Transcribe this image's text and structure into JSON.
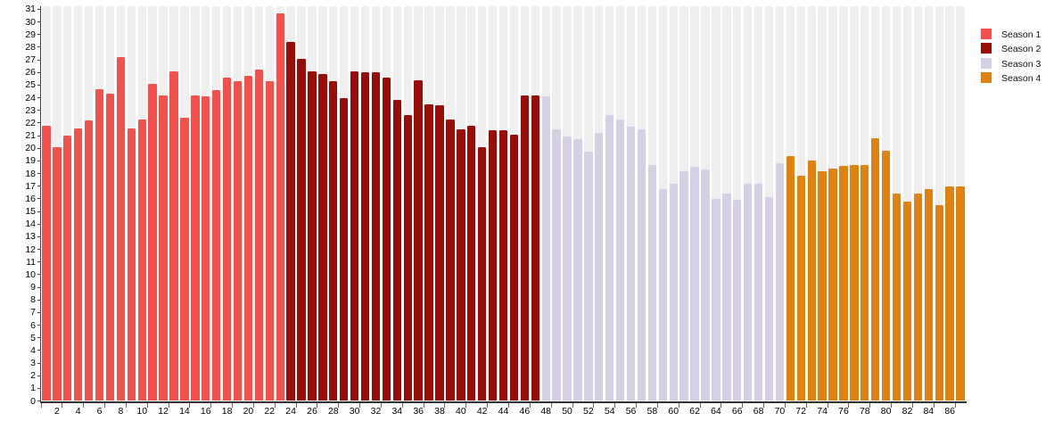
{
  "chart_data": {
    "type": "bar",
    "title": "",
    "xlabel": "",
    "ylabel": "",
    "ylim": [
      0,
      31
    ],
    "y_tick_step": 1,
    "x_tick_label_step": 2,
    "legend_position": "top-right",
    "background_stripe_color": "#efeff0",
    "series": [
      {
        "name": "Season 1",
        "color": "#f3514c",
        "first_episode": 1,
        "values": [
          21.8,
          20.1,
          21.0,
          21.6,
          22.2,
          24.7,
          24.3,
          27.2,
          21.6,
          22.3,
          25.1,
          24.2,
          26.1,
          22.4,
          24.2,
          24.1,
          24.6,
          25.6,
          25.3,
          25.7,
          26.2,
          25.3,
          30.7
        ]
      },
      {
        "name": "Season 2",
        "color": "#990d08",
        "first_episode": 24,
        "values": [
          28.4,
          27.1,
          26.1,
          25.9,
          25.3,
          24.0,
          26.1,
          26.0,
          26.0,
          25.6,
          23.8,
          22.6,
          25.4,
          23.5,
          23.4,
          22.3,
          21.5,
          21.8,
          20.1,
          21.4,
          21.4,
          21.1,
          24.2,
          24.2
        ]
      },
      {
        "name": "Season 3",
        "color": "#d6d0e6",
        "first_episode": 48,
        "values": [
          24.1,
          21.5,
          20.9,
          20.7,
          19.7,
          21.2,
          22.6,
          22.3,
          21.7,
          21.5,
          18.7,
          16.8,
          17.2,
          18.2,
          18.5,
          18.3,
          16.0,
          16.4,
          15.9,
          17.2,
          17.2,
          16.1,
          18.8
        ]
      },
      {
        "name": "Season 4",
        "color": "#e0820f",
        "first_episode": 71,
        "values": [
          19.4,
          17.8,
          19.0,
          18.2,
          18.4,
          18.6,
          18.7,
          18.7,
          20.8,
          19.8,
          16.4,
          15.8,
          16.4,
          16.8,
          15.5,
          17.0,
          17.0
        ]
      }
    ]
  },
  "legend": {
    "items": [
      {
        "label": "Season 1",
        "color": "#f3514c"
      },
      {
        "label": "Season 2",
        "color": "#990d08"
      },
      {
        "label": "Season 3",
        "color": "#d6d0e6"
      },
      {
        "label": "Season 4",
        "color": "#e0820f"
      }
    ]
  }
}
